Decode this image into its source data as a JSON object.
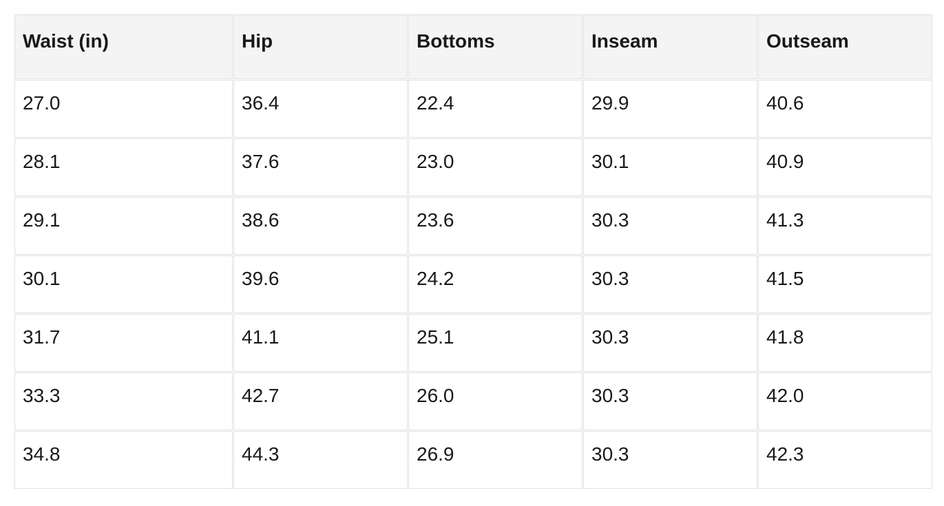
{
  "table": {
    "columns": [
      "Waist (in)",
      "Hip",
      "Bottoms",
      "Inseam",
      "Outseam"
    ],
    "rows": [
      [
        "27.0",
        "36.4",
        "22.4",
        "29.9",
        "40.6"
      ],
      [
        "28.1",
        "37.6",
        "23.0",
        "30.1",
        "40.9"
      ],
      [
        "29.1",
        "38.6",
        "23.6",
        "30.3",
        "41.3"
      ],
      [
        "30.1",
        "39.6",
        "24.2",
        "30.3",
        "41.5"
      ],
      [
        "31.7",
        "41.1",
        "25.1",
        "30.3",
        "41.8"
      ],
      [
        "33.3",
        "42.7",
        "26.0",
        "30.3",
        "42.0"
      ],
      [
        "34.8",
        "44.3",
        "26.9",
        "30.3",
        "42.3"
      ]
    ]
  },
  "colors": {
    "header_background": "#f4f4f4",
    "cell_background": "#ffffff",
    "border": "#e0e0e0",
    "text": "#191919"
  },
  "chart_data": {
    "type": "table",
    "title": "",
    "columns": [
      "Waist (in)",
      "Hip",
      "Bottoms",
      "Inseam",
      "Outseam"
    ],
    "rows": [
      [
        27.0,
        36.4,
        22.4,
        29.9,
        40.6
      ],
      [
        28.1,
        37.6,
        23.0,
        30.1,
        40.9
      ],
      [
        29.1,
        38.6,
        23.6,
        30.3,
        41.3
      ],
      [
        30.1,
        39.6,
        24.2,
        30.3,
        41.5
      ],
      [
        31.7,
        41.1,
        25.1,
        30.3,
        41.8
      ],
      [
        33.3,
        42.7,
        26.0,
        30.3,
        42.0
      ],
      [
        34.8,
        44.3,
        26.9,
        30.3,
        42.3
      ]
    ],
    "units": "inches",
    "layout_hints": {
      "header_row": true,
      "gridlines": true,
      "text_align": "left"
    }
  }
}
